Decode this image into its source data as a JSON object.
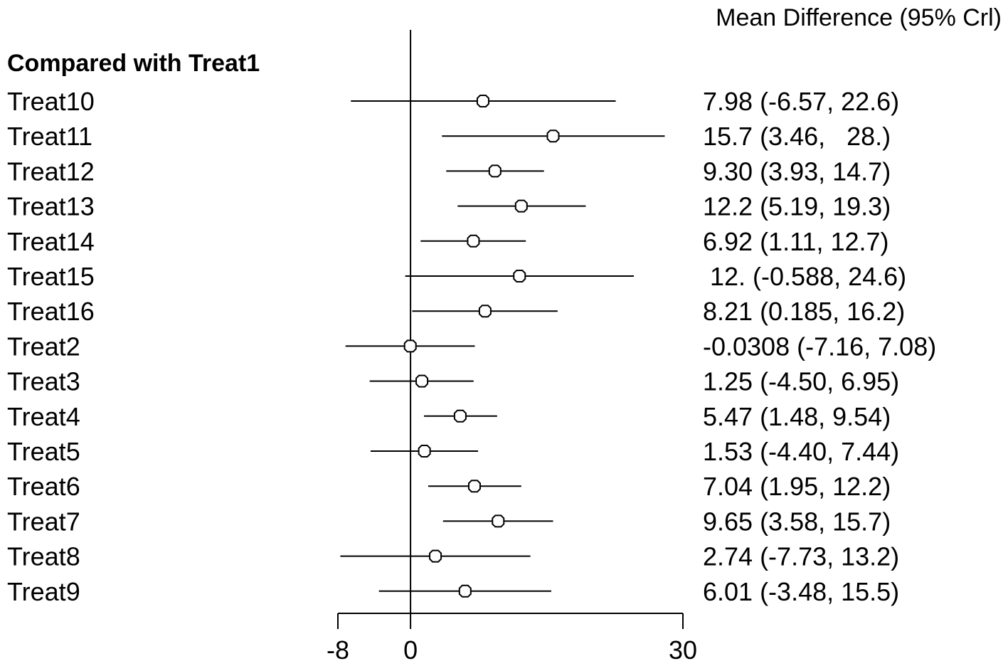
{
  "chart_data": {
    "type": "forest",
    "header": "Mean Difference (95% Crl)",
    "group_label": "Compared with Treat1",
    "reference_value": 0,
    "xlim": [
      -8,
      30
    ],
    "xticks": [
      "-8",
      "0",
      "30"
    ],
    "rows": [
      {
        "label": "Treat10",
        "mean": 7.98,
        "low": -6.57,
        "high": 22.6,
        "text": "7.98 (-6.57, 22.6)"
      },
      {
        "label": "Treat11",
        "mean": 15.7,
        "low": 3.46,
        "high": 28.0,
        "text": "15.7 (3.46,   28.)"
      },
      {
        "label": "Treat12",
        "mean": 9.3,
        "low": 3.93,
        "high": 14.7,
        "text": "9.30 (3.93, 14.7)"
      },
      {
        "label": "Treat13",
        "mean": 12.2,
        "low": 5.19,
        "high": 19.3,
        "text": "12.2 (5.19, 19.3)"
      },
      {
        "label": "Treat14",
        "mean": 6.92,
        "low": 1.11,
        "high": 12.7,
        "text": "6.92 (1.11, 12.7)"
      },
      {
        "label": "Treat15",
        "mean": 12.0,
        "low": -0.588,
        "high": 24.6,
        "text": " 12. (-0.588, 24.6)"
      },
      {
        "label": "Treat16",
        "mean": 8.21,
        "low": 0.185,
        "high": 16.2,
        "text": "8.21 (0.185, 16.2)"
      },
      {
        "label": "Treat2",
        "mean": -0.0308,
        "low": -7.16,
        "high": 7.08,
        "text": "-0.0308 (-7.16, 7.08)"
      },
      {
        "label": "Treat3",
        "mean": 1.25,
        "low": -4.5,
        "high": 6.95,
        "text": "1.25 (-4.50, 6.95)"
      },
      {
        "label": "Treat4",
        "mean": 5.47,
        "low": 1.48,
        "high": 9.54,
        "text": "5.47 (1.48, 9.54)"
      },
      {
        "label": "Treat5",
        "mean": 1.53,
        "low": -4.4,
        "high": 7.44,
        "text": "1.53 (-4.40, 7.44)"
      },
      {
        "label": "Treat6",
        "mean": 7.04,
        "low": 1.95,
        "high": 12.2,
        "text": "7.04 (1.95, 12.2)"
      },
      {
        "label": "Treat7",
        "mean": 9.65,
        "low": 3.58,
        "high": 15.7,
        "text": "9.65 (3.58, 15.7)"
      },
      {
        "label": "Treat8",
        "mean": 2.74,
        "low": -7.73,
        "high": 13.2,
        "text": "2.74 (-7.73, 13.2)"
      },
      {
        "label": "Treat9",
        "mean": 6.01,
        "low": -3.48,
        "high": 15.5,
        "text": "6.01 (-3.48, 15.5)"
      }
    ]
  }
}
